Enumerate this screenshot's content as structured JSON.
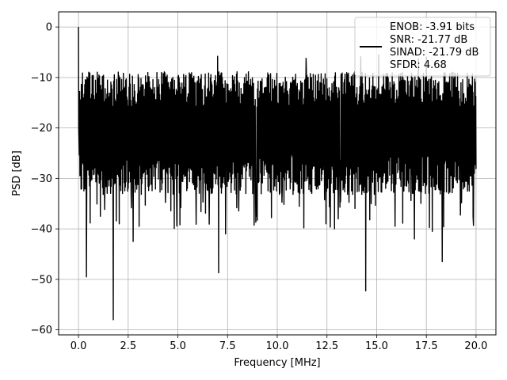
{
  "chart_data": {
    "type": "line",
    "xlabel": "Frequency [MHz]",
    "ylabel": "PSD [dB]",
    "xlim": [
      -1.0,
      21.0
    ],
    "ylim": [
      -61.0,
      3.0
    ],
    "xticks": [
      0.0,
      2.5,
      5.0,
      7.5,
      10.0,
      12.5,
      15.0,
      17.5,
      20.0
    ],
    "xtick_labels": [
      "0.0",
      "2.5",
      "5.0",
      "7.5",
      "10.0",
      "12.5",
      "15.0",
      "17.5",
      "20.0"
    ],
    "yticks": [
      0,
      -10,
      -20,
      -30,
      -40,
      -50,
      -60
    ],
    "ytick_labels": [
      "0",
      "−10",
      "−20",
      "−30",
      "−40",
      "−50",
      "−60"
    ],
    "grid": true,
    "legend_position": "top-right",
    "line_color": "#000000",
    "legend": [
      "ENOB: -3.91 bits",
      "SNR: -21.77 dB",
      "SINAD: -21.79 dB",
      "SFDR: 4.68"
    ],
    "series": [
      {
        "style": "noise-spectrum",
        "x_range": [
          0.0,
          20.0
        ],
        "baseline_db": -20,
        "typical_upper_db": -12,
        "typical_lower_db": -30,
        "dc_peak": {
          "x": 0.0,
          "y": 0.0
        },
        "notable_dips": [
          {
            "x": 0.03,
            "y": -39
          },
          {
            "x": 0.4,
            "y": -49.5
          },
          {
            "x": 1.1,
            "y": -37.5
          },
          {
            "x": 1.75,
            "y": -58
          },
          {
            "x": 2.05,
            "y": -39
          },
          {
            "x": 2.75,
            "y": -42.5
          },
          {
            "x": 3.05,
            "y": -39.5
          },
          {
            "x": 7.05,
            "y": -48.7
          },
          {
            "x": 7.4,
            "y": -41
          },
          {
            "x": 8.95,
            "y": -37.5
          },
          {
            "x": 12.45,
            "y": -39
          },
          {
            "x": 14.45,
            "y": -52.3
          },
          {
            "x": 16.9,
            "y": -42
          },
          {
            "x": 17.8,
            "y": -40.5
          },
          {
            "x": 18.3,
            "y": -46.5
          },
          {
            "x": 19.85,
            "y": -37.5
          }
        ],
        "notable_peaks": [
          {
            "x": 7.0,
            "y": -5.8
          },
          {
            "x": 11.45,
            "y": -6.2
          },
          {
            "x": 14.2,
            "y": -5.9
          },
          {
            "x": 15.1,
            "y": -5.5
          },
          {
            "x": 17.5,
            "y": -6.0
          },
          {
            "x": 17.1,
            "y": -6.3
          }
        ]
      }
    ]
  }
}
